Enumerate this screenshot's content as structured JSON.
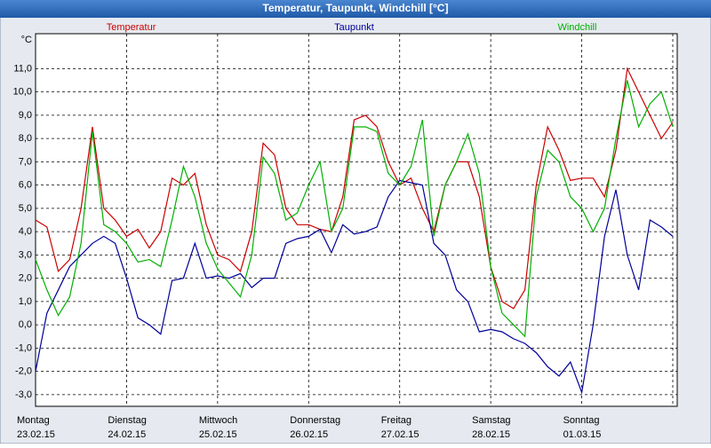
{
  "chart_data": {
    "type": "line",
    "title": "Temperatur, Taupunkt, Windchill [°C]",
    "y_unit": "°C",
    "x": [
      0,
      3,
      6,
      9,
      12,
      15,
      18,
      21,
      24,
      27,
      30,
      33,
      36,
      39,
      42,
      45,
      48,
      51,
      54,
      57,
      60,
      63,
      66,
      69,
      72,
      75,
      78,
      81,
      84,
      87,
      90,
      93,
      96,
      99,
      102,
      105,
      108,
      111,
      114,
      117,
      120,
      123,
      126,
      129,
      132,
      135,
      138,
      141,
      144,
      147,
      150,
      153,
      156,
      159,
      162,
      165,
      168
    ],
    "xlim": [
      0,
      168
    ],
    "xticks": [
      {
        "value": 0,
        "label": "Montag"
      },
      {
        "value": 24,
        "label": "Dienstag"
      },
      {
        "value": 48,
        "label": "Mittwoch"
      },
      {
        "value": 72,
        "label": "Donnerstag"
      },
      {
        "value": 96,
        "label": "Freitag"
      },
      {
        "value": 120,
        "label": "Samstag"
      },
      {
        "value": 144,
        "label": "Sonntag"
      }
    ],
    "xtick_dates": [
      "23.02.15",
      "24.02.15",
      "25.02.15",
      "26.02.15",
      "27.02.15",
      "28.02.15",
      "01.03.15"
    ],
    "ylim": [
      -3.5,
      12.5
    ],
    "yticks": [
      {
        "value": -3,
        "label": "-3,0"
      },
      {
        "value": -2,
        "label": "-2,0"
      },
      {
        "value": -1,
        "label": "-1,0"
      },
      {
        "value": 0,
        "label": "0,0"
      },
      {
        "value": 1,
        "label": "1,0"
      },
      {
        "value": 2,
        "label": "2,0"
      },
      {
        "value": 3,
        "label": "3,0"
      },
      {
        "value": 4,
        "label": "4,0"
      },
      {
        "value": 5,
        "label": "5,0"
      },
      {
        "value": 6,
        "label": "6,0"
      },
      {
        "value": 7,
        "label": "7,0"
      },
      {
        "value": 8,
        "label": "8,0"
      },
      {
        "value": 9,
        "label": "9,0"
      },
      {
        "value": 10,
        "label": "10,0"
      },
      {
        "value": 11,
        "label": "11,0"
      }
    ],
    "grid": true,
    "series": [
      {
        "name": "Temperatur",
        "color": "#cc0000",
        "values": [
          4.5,
          4.2,
          2.3,
          2.8,
          5.0,
          8.5,
          5.0,
          4.5,
          3.8,
          4.1,
          3.3,
          4.0,
          6.3,
          6.0,
          6.5,
          4.3,
          3.0,
          2.8,
          2.3,
          4.0,
          7.8,
          7.3,
          5.0,
          4.3,
          4.3,
          4.1,
          4.0,
          5.5,
          8.8,
          9.0,
          8.5,
          7.0,
          6.0,
          6.3,
          5.0,
          4.0,
          6.0,
          7.0,
          7.0,
          5.5,
          2.5,
          1.0,
          0.7,
          1.5,
          6.0,
          8.5,
          7.5,
          6.2,
          6.3,
          6.3,
          5.5,
          7.5,
          11.0,
          10.0,
          9.0,
          8.0,
          8.7
        ]
      },
      {
        "name": "Taupunkt",
        "color": "#000099",
        "values": [
          -2.0,
          0.5,
          1.5,
          2.5,
          3.0,
          3.5,
          3.8,
          3.5,
          2.0,
          0.3,
          0.0,
          -0.4,
          1.9,
          2.0,
          3.5,
          2.0,
          2.1,
          2.0,
          2.2,
          1.6,
          2.0,
          2.0,
          3.5,
          3.7,
          3.8,
          4.1,
          3.1,
          4.3,
          3.9,
          4.0,
          4.2,
          5.5,
          6.2,
          6.1,
          6.0,
          3.5,
          3.0,
          1.5,
          1.0,
          -0.3,
          -0.2,
          -0.3,
          -0.6,
          -0.8,
          -1.2,
          -1.8,
          -2.2,
          -1.6,
          -2.9,
          0.0,
          3.8,
          5.8,
          3.0,
          1.5,
          4.5,
          4.2,
          3.8
        ]
      },
      {
        "name": "Windchill",
        "color": "#00b000",
        "values": [
          2.8,
          1.5,
          0.4,
          1.2,
          3.5,
          8.3,
          4.3,
          4.0,
          3.5,
          2.7,
          2.8,
          2.5,
          4.5,
          6.8,
          5.5,
          3.5,
          2.4,
          1.8,
          1.2,
          3.0,
          7.2,
          6.5,
          4.5,
          4.8,
          6.0,
          7.0,
          4.0,
          5.0,
          8.5,
          8.5,
          8.3,
          6.5,
          6.0,
          6.8,
          8.8,
          3.8,
          6.0,
          7.0,
          8.2,
          6.5,
          2.5,
          0.5,
          0.0,
          -0.5,
          5.5,
          7.5,
          7.0,
          5.5,
          5.0,
          4.0,
          5.0,
          8.0,
          10.5,
          8.5,
          9.5,
          10.0,
          8.5
        ]
      }
    ]
  }
}
